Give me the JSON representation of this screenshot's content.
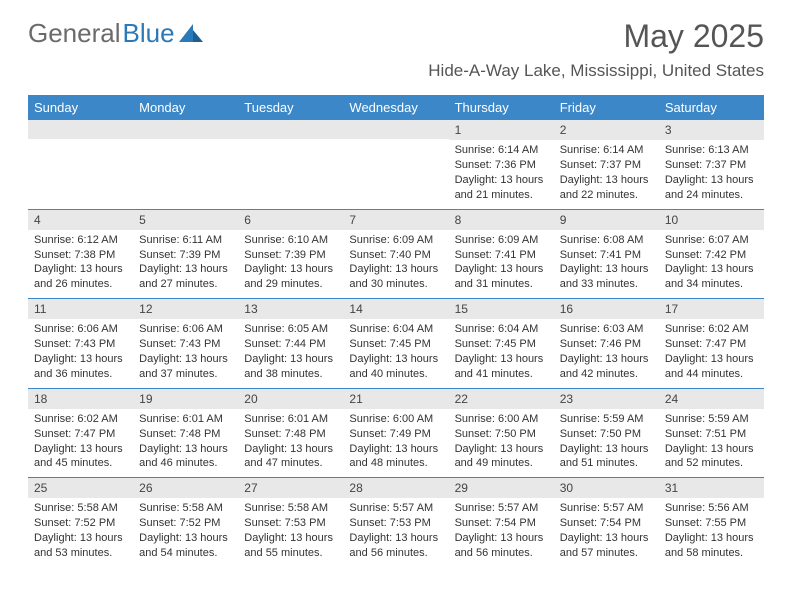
{
  "logo": {
    "text_gray": "General",
    "text_blue": "Blue"
  },
  "title": "May 2025",
  "location": "Hide-A-Way Lake, Mississippi, United States",
  "colors": {
    "header_bg": "#3b87c8",
    "header_text": "#ffffff",
    "day_bar_bg": "#e8e8e8",
    "rule": "#3b87c8",
    "body_text": "#333333",
    "title_text": "#555555",
    "logo_gray": "#6b6b6b",
    "logo_blue": "#2a7ab9"
  },
  "day_names": [
    "Sunday",
    "Monday",
    "Tuesday",
    "Wednesday",
    "Thursday",
    "Friday",
    "Saturday"
  ],
  "weeks": [
    [
      {
        "empty": true
      },
      {
        "empty": true
      },
      {
        "empty": true
      },
      {
        "empty": true
      },
      {
        "day": "1",
        "sunrise": "Sunrise: 6:14 AM",
        "sunset": "Sunset: 7:36 PM",
        "daylight1": "Daylight: 13 hours",
        "daylight2": "and 21 minutes."
      },
      {
        "day": "2",
        "sunrise": "Sunrise: 6:14 AM",
        "sunset": "Sunset: 7:37 PM",
        "daylight1": "Daylight: 13 hours",
        "daylight2": "and 22 minutes."
      },
      {
        "day": "3",
        "sunrise": "Sunrise: 6:13 AM",
        "sunset": "Sunset: 7:37 PM",
        "daylight1": "Daylight: 13 hours",
        "daylight2": "and 24 minutes."
      }
    ],
    [
      {
        "day": "4",
        "sunrise": "Sunrise: 6:12 AM",
        "sunset": "Sunset: 7:38 PM",
        "daylight1": "Daylight: 13 hours",
        "daylight2": "and 26 minutes."
      },
      {
        "day": "5",
        "sunrise": "Sunrise: 6:11 AM",
        "sunset": "Sunset: 7:39 PM",
        "daylight1": "Daylight: 13 hours",
        "daylight2": "and 27 minutes."
      },
      {
        "day": "6",
        "sunrise": "Sunrise: 6:10 AM",
        "sunset": "Sunset: 7:39 PM",
        "daylight1": "Daylight: 13 hours",
        "daylight2": "and 29 minutes."
      },
      {
        "day": "7",
        "sunrise": "Sunrise: 6:09 AM",
        "sunset": "Sunset: 7:40 PM",
        "daylight1": "Daylight: 13 hours",
        "daylight2": "and 30 minutes."
      },
      {
        "day": "8",
        "sunrise": "Sunrise: 6:09 AM",
        "sunset": "Sunset: 7:41 PM",
        "daylight1": "Daylight: 13 hours",
        "daylight2": "and 31 minutes."
      },
      {
        "day": "9",
        "sunrise": "Sunrise: 6:08 AM",
        "sunset": "Sunset: 7:41 PM",
        "daylight1": "Daylight: 13 hours",
        "daylight2": "and 33 minutes."
      },
      {
        "day": "10",
        "sunrise": "Sunrise: 6:07 AM",
        "sunset": "Sunset: 7:42 PM",
        "daylight1": "Daylight: 13 hours",
        "daylight2": "and 34 minutes."
      }
    ],
    [
      {
        "day": "11",
        "sunrise": "Sunrise: 6:06 AM",
        "sunset": "Sunset: 7:43 PM",
        "daylight1": "Daylight: 13 hours",
        "daylight2": "and 36 minutes."
      },
      {
        "day": "12",
        "sunrise": "Sunrise: 6:06 AM",
        "sunset": "Sunset: 7:43 PM",
        "daylight1": "Daylight: 13 hours",
        "daylight2": "and 37 minutes."
      },
      {
        "day": "13",
        "sunrise": "Sunrise: 6:05 AM",
        "sunset": "Sunset: 7:44 PM",
        "daylight1": "Daylight: 13 hours",
        "daylight2": "and 38 minutes."
      },
      {
        "day": "14",
        "sunrise": "Sunrise: 6:04 AM",
        "sunset": "Sunset: 7:45 PM",
        "daylight1": "Daylight: 13 hours",
        "daylight2": "and 40 minutes."
      },
      {
        "day": "15",
        "sunrise": "Sunrise: 6:04 AM",
        "sunset": "Sunset: 7:45 PM",
        "daylight1": "Daylight: 13 hours",
        "daylight2": "and 41 minutes."
      },
      {
        "day": "16",
        "sunrise": "Sunrise: 6:03 AM",
        "sunset": "Sunset: 7:46 PM",
        "daylight1": "Daylight: 13 hours",
        "daylight2": "and 42 minutes."
      },
      {
        "day": "17",
        "sunrise": "Sunrise: 6:02 AM",
        "sunset": "Sunset: 7:47 PM",
        "daylight1": "Daylight: 13 hours",
        "daylight2": "and 44 minutes."
      }
    ],
    [
      {
        "day": "18",
        "sunrise": "Sunrise: 6:02 AM",
        "sunset": "Sunset: 7:47 PM",
        "daylight1": "Daylight: 13 hours",
        "daylight2": "and 45 minutes."
      },
      {
        "day": "19",
        "sunrise": "Sunrise: 6:01 AM",
        "sunset": "Sunset: 7:48 PM",
        "daylight1": "Daylight: 13 hours",
        "daylight2": "and 46 minutes."
      },
      {
        "day": "20",
        "sunrise": "Sunrise: 6:01 AM",
        "sunset": "Sunset: 7:48 PM",
        "daylight1": "Daylight: 13 hours",
        "daylight2": "and 47 minutes."
      },
      {
        "day": "21",
        "sunrise": "Sunrise: 6:00 AM",
        "sunset": "Sunset: 7:49 PM",
        "daylight1": "Daylight: 13 hours",
        "daylight2": "and 48 minutes."
      },
      {
        "day": "22",
        "sunrise": "Sunrise: 6:00 AM",
        "sunset": "Sunset: 7:50 PM",
        "daylight1": "Daylight: 13 hours",
        "daylight2": "and 49 minutes."
      },
      {
        "day": "23",
        "sunrise": "Sunrise: 5:59 AM",
        "sunset": "Sunset: 7:50 PM",
        "daylight1": "Daylight: 13 hours",
        "daylight2": "and 51 minutes."
      },
      {
        "day": "24",
        "sunrise": "Sunrise: 5:59 AM",
        "sunset": "Sunset: 7:51 PM",
        "daylight1": "Daylight: 13 hours",
        "daylight2": "and 52 minutes."
      }
    ],
    [
      {
        "day": "25",
        "sunrise": "Sunrise: 5:58 AM",
        "sunset": "Sunset: 7:52 PM",
        "daylight1": "Daylight: 13 hours",
        "daylight2": "and 53 minutes."
      },
      {
        "day": "26",
        "sunrise": "Sunrise: 5:58 AM",
        "sunset": "Sunset: 7:52 PM",
        "daylight1": "Daylight: 13 hours",
        "daylight2": "and 54 minutes."
      },
      {
        "day": "27",
        "sunrise": "Sunrise: 5:58 AM",
        "sunset": "Sunset: 7:53 PM",
        "daylight1": "Daylight: 13 hours",
        "daylight2": "and 55 minutes."
      },
      {
        "day": "28",
        "sunrise": "Sunrise: 5:57 AM",
        "sunset": "Sunset: 7:53 PM",
        "daylight1": "Daylight: 13 hours",
        "daylight2": "and 56 minutes."
      },
      {
        "day": "29",
        "sunrise": "Sunrise: 5:57 AM",
        "sunset": "Sunset: 7:54 PM",
        "daylight1": "Daylight: 13 hours",
        "daylight2": "and 56 minutes."
      },
      {
        "day": "30",
        "sunrise": "Sunrise: 5:57 AM",
        "sunset": "Sunset: 7:54 PM",
        "daylight1": "Daylight: 13 hours",
        "daylight2": "and 57 minutes."
      },
      {
        "day": "31",
        "sunrise": "Sunrise: 5:56 AM",
        "sunset": "Sunset: 7:55 PM",
        "daylight1": "Daylight: 13 hours",
        "daylight2": "and 58 minutes."
      }
    ]
  ]
}
